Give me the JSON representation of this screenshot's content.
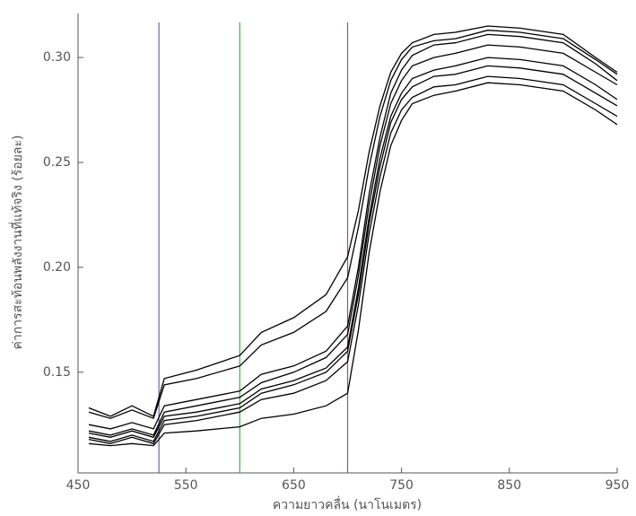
{
  "chart_data": {
    "type": "line",
    "x_label": "ความยาวคลื่น (นาโนเมตร)",
    "y_label": "ค่าการสะท้อนพลังงานที่แท้จริง (ร้อยละ)",
    "x": [
      460,
      480,
      500,
      520,
      530,
      560,
      600,
      620,
      650,
      680,
      700,
      710,
      720,
      730,
      740,
      750,
      760,
      780,
      800,
      830,
      860,
      900,
      930,
      950
    ],
    "series": [
      {
        "color": "#000000",
        "values": [
          0.133,
          0.129,
          0.134,
          0.129,
          0.147,
          0.151,
          0.158,
          0.169,
          0.176,
          0.187,
          0.205,
          0.227,
          0.255,
          0.277,
          0.293,
          0.302,
          0.307,
          0.311,
          0.312,
          0.315,
          0.314,
          0.311,
          0.3,
          0.293
        ]
      },
      {
        "color": "#000000",
        "values": [
          0.131,
          0.128,
          0.132,
          0.128,
          0.144,
          0.147,
          0.153,
          0.163,
          0.169,
          0.179,
          0.195,
          0.219,
          0.248,
          0.272,
          0.289,
          0.299,
          0.305,
          0.308,
          0.309,
          0.313,
          0.312,
          0.309,
          0.299,
          0.292
        ]
      },
      {
        "color": "#000000",
        "values": [
          0.125,
          0.123,
          0.126,
          0.123,
          0.134,
          0.137,
          0.141,
          0.149,
          0.153,
          0.16,
          0.172,
          0.2,
          0.235,
          0.262,
          0.283,
          0.294,
          0.301,
          0.306,
          0.307,
          0.311,
          0.31,
          0.307,
          0.297,
          0.289
        ]
      },
      {
        "color": "#000000",
        "values": [
          0.122,
          0.12,
          0.123,
          0.12,
          0.131,
          0.134,
          0.138,
          0.145,
          0.15,
          0.157,
          0.168,
          0.196,
          0.23,
          0.258,
          0.278,
          0.289,
          0.296,
          0.3,
          0.302,
          0.306,
          0.305,
          0.302,
          0.293,
          0.287
        ]
      },
      {
        "color": "#000000",
        "values": [
          0.121,
          0.119,
          0.122,
          0.119,
          0.129,
          0.131,
          0.135,
          0.142,
          0.146,
          0.152,
          0.162,
          0.19,
          0.224,
          0.252,
          0.272,
          0.283,
          0.29,
          0.294,
          0.296,
          0.3,
          0.299,
          0.296,
          0.287,
          0.28
        ]
      },
      {
        "color": "#000000",
        "values": [
          0.119,
          0.117,
          0.12,
          0.117,
          0.127,
          0.129,
          0.133,
          0.14,
          0.144,
          0.15,
          0.16,
          0.187,
          0.221,
          0.248,
          0.269,
          0.28,
          0.286,
          0.291,
          0.292,
          0.296,
          0.295,
          0.292,
          0.283,
          0.277
        ]
      },
      {
        "color": "#000000",
        "values": [
          0.118,
          0.116,
          0.119,
          0.116,
          0.125,
          0.127,
          0.131,
          0.137,
          0.14,
          0.146,
          0.155,
          0.182,
          0.216,
          0.243,
          0.264,
          0.275,
          0.281,
          0.286,
          0.287,
          0.291,
          0.29,
          0.287,
          0.278,
          0.272
        ]
      },
      {
        "color": "#000000",
        "values": [
          0.116,
          0.115,
          0.116,
          0.115,
          0.121,
          0.122,
          0.124,
          0.128,
          0.13,
          0.134,
          0.14,
          0.17,
          0.207,
          0.236,
          0.258,
          0.27,
          0.278,
          0.282,
          0.284,
          0.288,
          0.287,
          0.284,
          0.275,
          0.268
        ]
      }
    ],
    "reference_lines": [
      {
        "x": 525,
        "color": "#6a6a9e"
      },
      {
        "x": 600,
        "color": "#3cb04a"
      },
      {
        "x": 700,
        "color": "#b0504a"
      }
    ],
    "xlim": [
      450,
      950
    ],
    "xticks": [
      450,
      550,
      650,
      750,
      850,
      950
    ],
    "ylim": [
      0.102,
      0.321
    ],
    "yticks": [
      0.15,
      {
        "value": 0.2,
        "label": "0.20"
      },
      0.25,
      {
        "value": 0.3,
        "label": "0.30"
      }
    ]
  }
}
